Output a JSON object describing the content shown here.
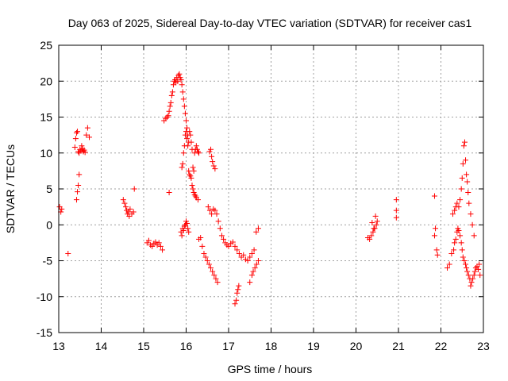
{
  "chart_data": {
    "type": "scatter",
    "title": "Day 063 of 2025, Sidereal Day-to-day VTEC variation (SDTVAR) for receiver cas1",
    "xlabel": "GPS time / hours",
    "ylabel": "SDTVAR / TECUs",
    "xlim": [
      13,
      23
    ],
    "ylim": [
      -15,
      25
    ],
    "x_ticks": [
      "13",
      "14",
      "15",
      "16",
      "17",
      "18",
      "19",
      "20",
      "21",
      "22",
      "23"
    ],
    "y_ticks": [
      "25",
      "20",
      "15",
      "10",
      "5",
      "0",
      "-5",
      "-10",
      "-15"
    ],
    "grid": true,
    "marker": "+",
    "series": [
      {
        "name": "SDTVAR",
        "color": "#ff0000",
        "x": [
          13.02,
          13.05,
          13.07,
          13.22,
          13.38,
          13.4,
          13.42,
          13.44,
          13.46,
          13.48,
          13.5,
          13.52,
          13.54,
          13.56,
          13.58,
          13.6,
          13.62,
          13.65,
          13.68,
          13.72,
          13.42,
          13.44,
          13.46,
          13.48,
          14.52,
          14.55,
          14.58,
          14.6,
          14.62,
          14.64,
          14.66,
          14.68,
          14.72,
          14.76,
          15.08,
          15.12,
          15.16,
          15.2,
          15.24,
          15.28,
          15.32,
          15.36,
          15.4,
          15.44,
          15.48,
          15.52,
          15.55,
          15.58,
          15.6,
          15.62,
          15.64,
          15.66,
          15.68,
          15.7,
          15.72,
          15.74,
          15.76,
          15.78,
          15.8,
          15.82,
          15.84,
          15.86,
          15.88,
          15.9,
          15.92,
          15.94,
          15.96,
          15.98,
          16.0,
          16.02,
          16.04,
          16.06,
          16.08,
          16.1,
          16.12,
          16.14,
          16.16,
          16.18,
          16.2,
          16.22,
          16.24,
          16.26,
          16.28,
          16.3,
          15.9,
          15.92,
          15.94,
          15.96,
          15.98,
          16.0,
          16.02,
          16.04,
          16.06,
          16.08,
          16.1,
          16.12,
          16.14,
          16.16,
          16.18,
          16.2,
          16.22,
          16.24,
          16.28,
          15.88,
          15.9,
          15.92,
          15.94,
          15.96,
          15.98,
          16.0,
          16.02,
          16.04,
          16.06,
          16.3,
          16.34,
          16.38,
          16.42,
          16.46,
          16.5,
          16.54,
          16.58,
          16.62,
          16.66,
          16.7,
          16.74,
          16.55,
          16.58,
          16.6,
          16.62,
          16.65,
          16.68,
          16.52,
          16.56,
          16.6,
          16.64,
          16.68,
          16.72,
          16.76,
          16.8,
          16.84,
          16.88,
          16.92,
          16.96,
          17.0,
          17.05,
          17.1,
          17.15,
          17.2,
          17.25,
          17.3,
          17.35,
          17.4,
          17.45,
          17.5,
          17.55,
          17.6,
          17.65,
          17.7,
          17.15,
          17.18,
          17.2,
          17.22,
          17.24,
          17.5,
          17.55,
          17.58,
          17.62,
          17.66,
          17.7,
          15.6,
          14.78,
          20.28,
          20.32,
          20.36,
          20.4,
          20.44,
          20.48,
          20.5,
          20.38,
          20.42,
          20.46,
          20.95,
          20.95,
          20.95,
          21.85,
          21.85,
          21.87,
          21.9,
          21.92,
          22.15,
          22.2,
          22.25,
          22.3,
          22.32,
          22.35,
          22.38,
          22.4,
          22.42,
          22.45,
          22.48,
          22.5,
          22.52,
          22.55,
          22.58,
          22.6,
          22.62,
          22.65,
          22.68,
          22.7,
          22.72,
          22.75,
          22.78,
          22.8,
          22.82,
          22.85,
          22.88,
          22.9,
          22.92,
          22.28,
          22.32,
          22.35,
          22.38,
          22.42,
          22.45,
          22.48,
          22.5,
          22.52,
          22.54,
          22.56,
          22.58,
          22.6,
          22.62,
          22.64,
          22.66,
          22.7,
          22.74,
          22.78
        ],
        "y": [
          2.5,
          1.8,
          2.2,
          -4.0,
          10.8,
          12.0,
          12.8,
          13.0,
          10.2,
          10.0,
          10.5,
          10.3,
          11.0,
          10.6,
          10.2,
          10.4,
          10.1,
          12.5,
          13.5,
          12.2,
          3.5,
          4.6,
          5.5,
          7.0,
          3.5,
          3.0,
          2.5,
          2.0,
          1.5,
          1.8,
          1.2,
          2.2,
          1.5,
          1.8,
          -2.5,
          -2.2,
          -2.8,
          -3.0,
          -2.6,
          -2.4,
          -2.8,
          -2.5,
          -3.0,
          -3.5,
          14.5,
          14.8,
          15.0,
          15.2,
          15.8,
          16.5,
          17.0,
          18.0,
          18.5,
          19.5,
          20.0,
          20.2,
          19.8,
          20.5,
          20.0,
          20.8,
          21.0,
          20.5,
          20.2,
          19.5,
          18.5,
          17.5,
          16.5,
          15.5,
          14.5,
          13.5,
          12.5,
          11.5,
          13.0,
          12.5,
          11.5,
          10.5,
          8.0,
          7.5,
          10.0,
          10.5,
          11.0,
          10.5,
          10.2,
          10.0,
          8.0,
          8.5,
          10.0,
          11.0,
          12.5,
          13.0,
          12.0,
          11.0,
          7.5,
          7.0,
          6.8,
          6.5,
          5.5,
          5.0,
          4.5,
          4.2,
          4.0,
          3.8,
          3.5,
          -1.0,
          -1.5,
          -0.5,
          -0.8,
          -0.2,
          0.0,
          0.5,
          0.2,
          -0.5,
          -1.0,
          -2.0,
          -1.8,
          -3.0,
          -4.0,
          -4.5,
          -5.0,
          -5.5,
          -6.0,
          -6.5,
          -7.0,
          -7.5,
          -8.0,
          10.2,
          10.5,
          9.5,
          8.8,
          8.2,
          7.8,
          2.5,
          2.0,
          1.5,
          2.2,
          2.0,
          1.5,
          0.5,
          -0.5,
          -1.5,
          -2.0,
          -2.5,
          -2.8,
          -3.0,
          -2.6,
          -2.4,
          -3.0,
          -3.5,
          -4.0,
          -4.5,
          -4.2,
          -4.8,
          -5.0,
          -4.5,
          -4.0,
          -3.5,
          -1.0,
          -0.5,
          -11.0,
          -10.5,
          -9.5,
          -9.0,
          -8.5,
          -8.0,
          -7.0,
          -6.5,
          -6.0,
          -5.5,
          -5.0,
          4.5,
          5.0,
          -1.8,
          -2.0,
          -1.5,
          -1.0,
          -0.5,
          0.0,
          0.5,
          0.3,
          -0.5,
          1.2,
          3.5,
          2.0,
          1.0,
          4.0,
          -1.5,
          -0.5,
          -3.5,
          -4.2,
          -6.0,
          -5.5,
          -4.0,
          -3.5,
          -2.5,
          -2.0,
          -1.0,
          -0.5,
          -0.8,
          -1.5,
          -2.5,
          -3.5,
          -4.5,
          -5.0,
          -5.5,
          -6.0,
          -6.5,
          -7.0,
          -7.5,
          -8.5,
          -8.0,
          -7.5,
          -7.0,
          -6.5,
          -6.0,
          -5.8,
          -6.2,
          -5.5,
          -7.0,
          1.5,
          2.0,
          2.5,
          3.0,
          2.5,
          3.5,
          5.0,
          6.5,
          8.5,
          11.0,
          11.5,
          9.0,
          7.0,
          6.0,
          4.5,
          3.0,
          1.5,
          0.0,
          -1.5
        ]
      }
    ]
  }
}
